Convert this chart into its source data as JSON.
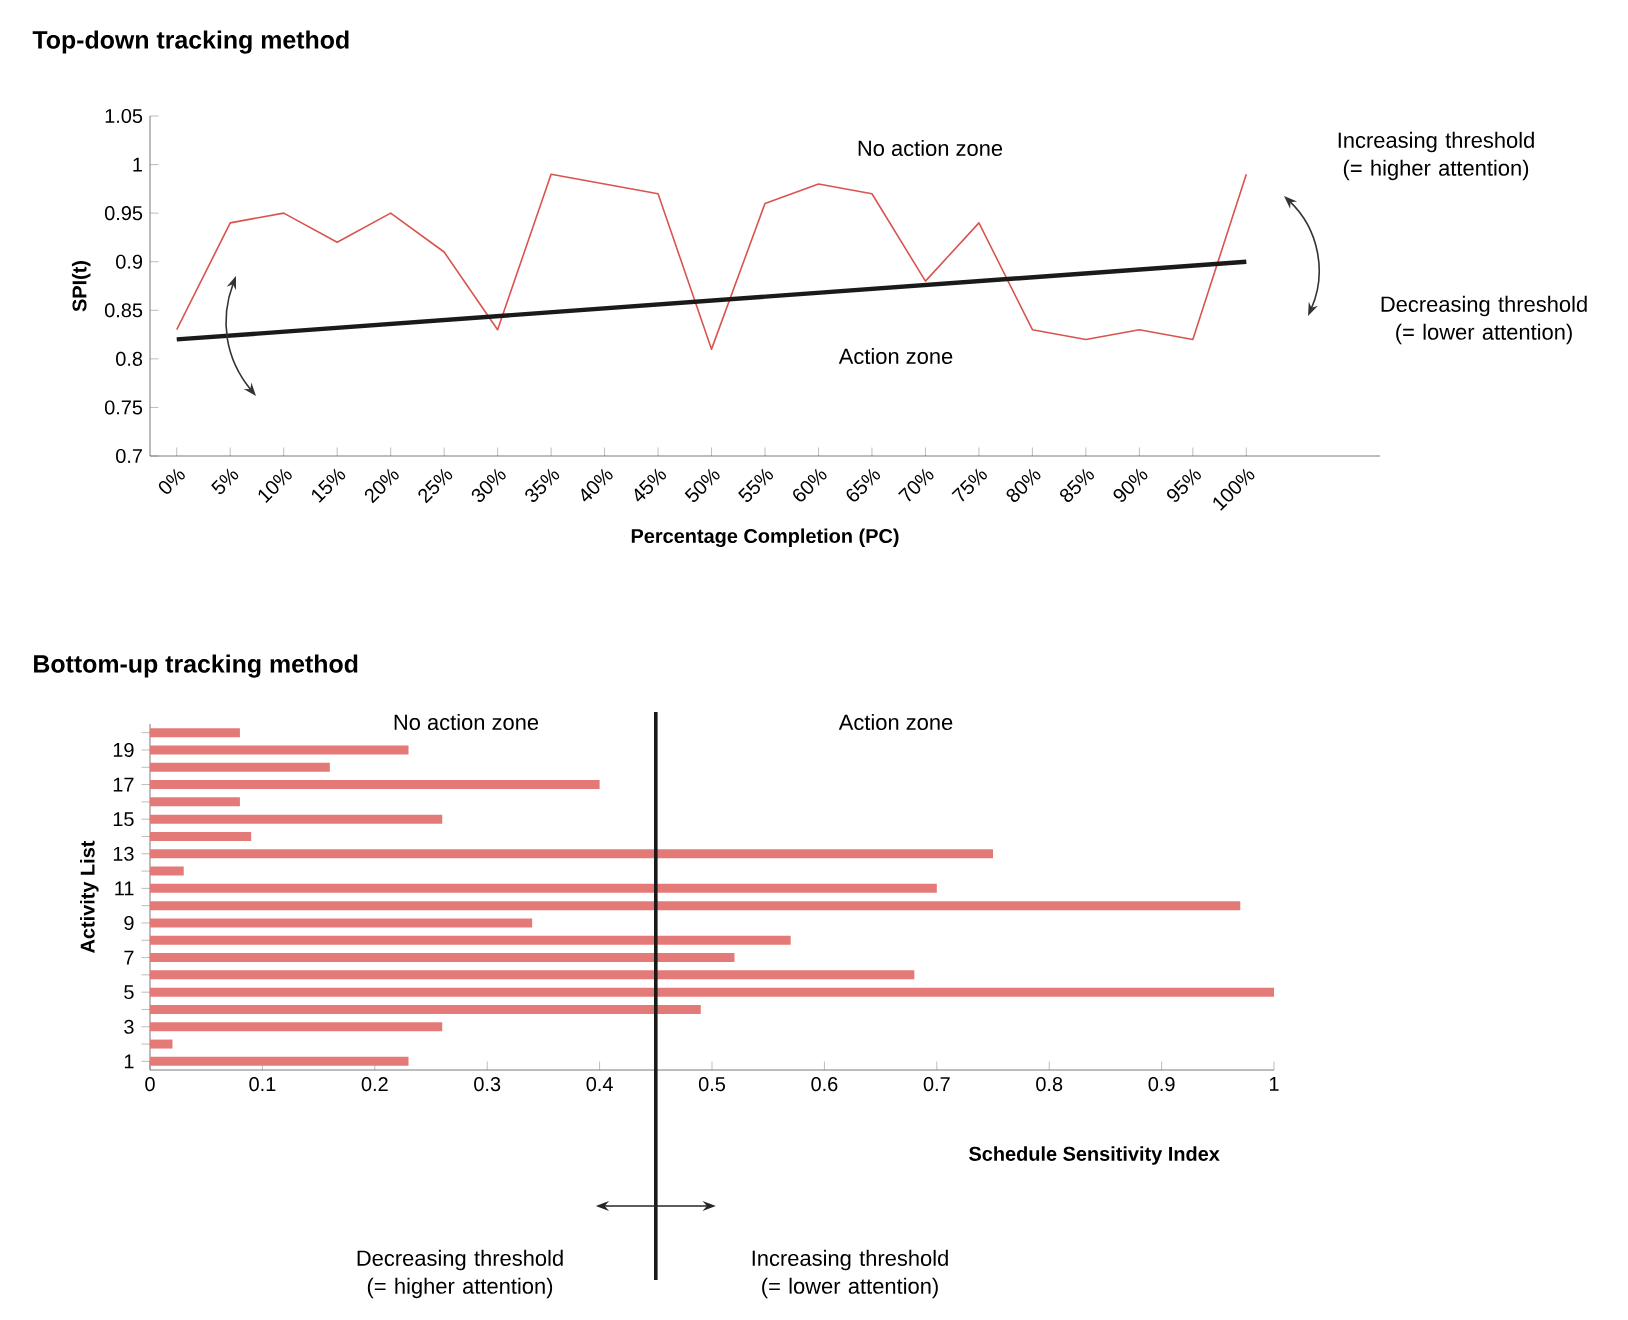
{
  "chart_data": [
    {
      "type": "line",
      "title": "Top-down tracking method",
      "xlabel": "Percentage Completion (PC)",
      "ylabel": "SPI(t)",
      "categories": [
        "0%",
        "5%",
        "10%",
        "15%",
        "20%",
        "25%",
        "30%",
        "35%",
        "40%",
        "45%",
        "50%",
        "55%",
        "60%",
        "65%",
        "70%",
        "75%",
        "80%",
        "85%",
        "90%",
        "95%",
        "100%"
      ],
      "series": [
        {
          "color": "#d9544f",
          "values": [
            0.83,
            0.94,
            0.95,
            0.92,
            0.95,
            0.91,
            0.83,
            0.99,
            0.98,
            0.97,
            0.81,
            0.96,
            0.98,
            0.97,
            0.88,
            0.94,
            0.83,
            0.82,
            0.83,
            0.82,
            0.99
          ]
        },
        {
          "color": "#1a1a1a",
          "x": [
            "0%",
            "100%"
          ],
          "values": [
            0.82,
            0.9
          ]
        }
      ],
      "ylim": [
        0.7,
        1.05
      ],
      "yticks": [
        0.7,
        0.75,
        0.8,
        0.85,
        0.9,
        0.95,
        1,
        1.05
      ],
      "grid": false,
      "marker": "none",
      "annotations": [
        "No action zone",
        "Action zone",
        "Increasing threshold (= higher attention)",
        "Decreasing threshold (= lower attention)"
      ]
    },
    {
      "type": "bar",
      "orientation": "horizontal",
      "title": "Bottom-up tracking method",
      "xlabel": "Schedule Sensitivity Index",
      "ylabel": "Activity List",
      "categories": [
        null,
        "19",
        null,
        "17",
        null,
        "15",
        null,
        "13",
        null,
        "11",
        null,
        "9",
        null,
        "7",
        null,
        "5",
        null,
        "3",
        null,
        "1"
      ],
      "values": [
        0.08,
        0.23,
        0.16,
        0.4,
        0.08,
        0.26,
        0.09,
        0.75,
        0.03,
        0.7,
        0.97,
        0.34,
        0.57,
        0.52,
        0.68,
        1.0,
        0.49,
        0.26,
        0.02,
        0.23
      ],
      "color": "#e47a78",
      "xlim": [
        0,
        1
      ],
      "xticks": [
        0,
        0.1,
        0.2,
        0.3,
        0.4,
        0.5,
        0.6,
        0.7,
        0.8,
        0.9,
        1
      ],
      "grid": false,
      "ref_lines": [
        {
          "axis": "x",
          "value": 0.45,
          "color": "#1a1a1a"
        }
      ],
      "annotations": [
        "No action zone",
        "Action zone",
        "Decreasing threshold (= higher attention)",
        "Increasing threshold (= lower attention)"
      ]
    }
  ]
}
